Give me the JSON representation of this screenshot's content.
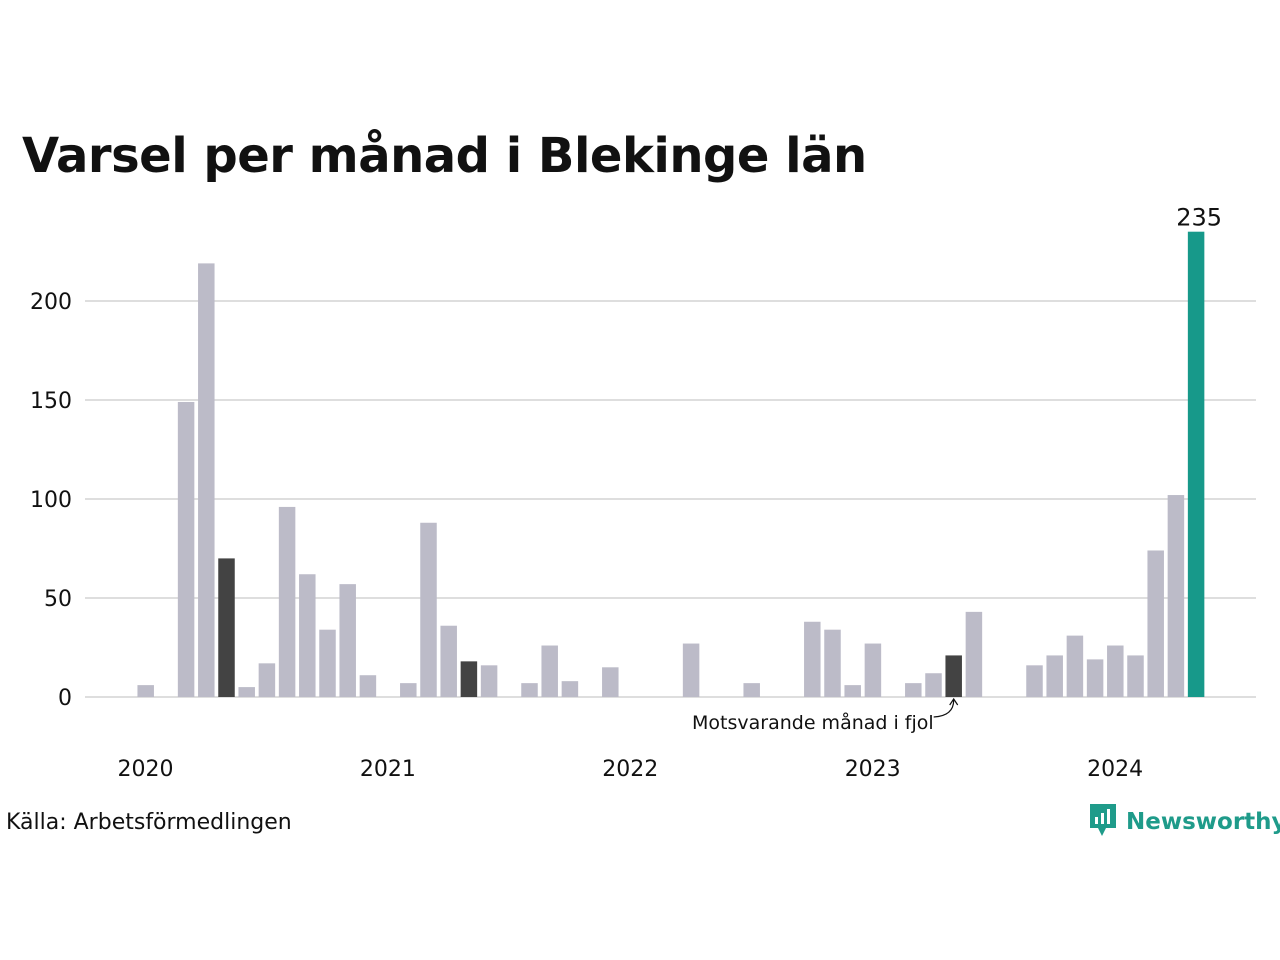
{
  "title": "Varsel per månad i Blekinge län",
  "source": "Källa: Arbetsförmedlingen",
  "brand": "Newsworthy",
  "colors": {
    "bar": "#bcbbc8",
    "highlight": "#434343",
    "current": "#17998a",
    "grid": "#dedede",
    "text": "#111111",
    "brand": "#1f9b8a"
  },
  "chart_data": {
    "type": "bar",
    "x_start": "2020-01",
    "y_ticks": [
      0,
      50,
      100,
      150,
      200
    ],
    "ylim": [
      0,
      235
    ],
    "x_ticks": [
      "2020",
      "2021",
      "2022",
      "2023",
      "2024"
    ],
    "grid": true,
    "values": [
      0,
      6,
      0,
      149,
      219,
      70,
      5,
      17,
      96,
      62,
      34,
      57,
      11,
      0,
      7,
      88,
      36,
      18,
      16,
      0,
      7,
      26,
      8,
      0,
      15,
      0,
      0,
      0,
      27,
      0,
      0,
      7,
      0,
      0,
      38,
      34,
      6,
      27,
      0,
      7,
      12,
      21,
      43,
      0,
      0,
      16,
      21,
      31,
      19,
      26,
      21,
      74,
      102,
      235
    ],
    "highlight_indices": [
      5,
      17,
      41
    ],
    "current_index": 53,
    "current_label": "235",
    "annotation": {
      "text": "Motsvarande månad i fjol",
      "target_index": 41
    }
  }
}
